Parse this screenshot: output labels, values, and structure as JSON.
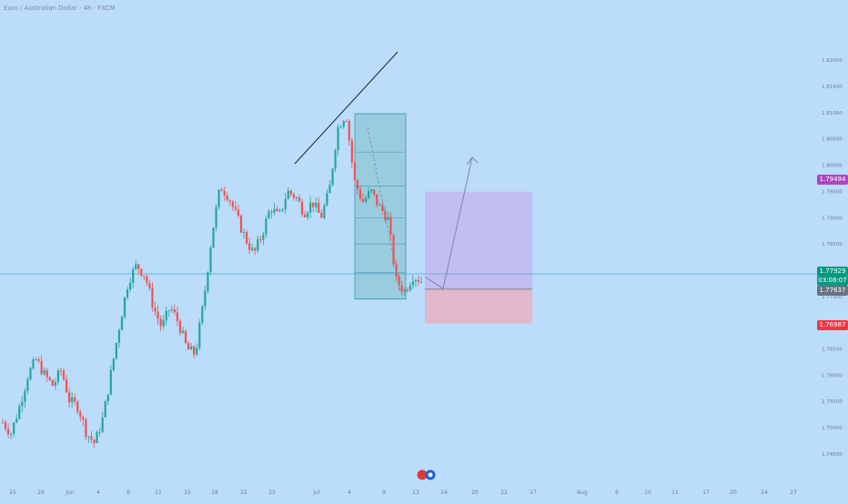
{
  "header": {
    "title": "Euro / Australian Dollar · 4h · FXCM"
  },
  "colors": {
    "background": "#bbdcfb",
    "up": "#26a69a",
    "down": "#ef5350",
    "fib_box": "#8fc7d6",
    "target_zone": "#c3b9f1",
    "stop_zone": "#e6b3c5",
    "current_price": "#089981",
    "target_price": "#ab47bc",
    "stop_price": "#f23645",
    "last_close": "#6b7280"
  },
  "price_labels": {
    "target": "1.79494",
    "current": "1.77929",
    "countdown": "03:08:07",
    "last_close": "1.77637",
    "stop": "1.76987"
  },
  "chart_data": {
    "type": "candlestick",
    "title": "Euro / Australian Dollar · 4h · FXCM",
    "y_axis": {
      "position": "right",
      "ylim": [
        1.7405,
        1.8197
      ],
      "ticks": [
        "1.74500",
        "1.75000",
        "1.75500",
        "1.76000",
        "1.76500",
        "1.77000",
        "1.77500",
        "1.78000",
        "1.78500",
        "1.79000",
        "1.79500",
        "1.80000",
        "1.80500",
        "1.81000",
        "1.81500",
        "1.82000"
      ]
    },
    "x_axis": {
      "ticks": [
        "25",
        "29",
        "Jun",
        "4",
        "6",
        "11",
        "15",
        "18",
        "22",
        "25",
        "Jul",
        "4",
        "9",
        "13",
        "14",
        "20",
        "22",
        "27",
        "Aug",
        "6",
        "10",
        "11",
        "17",
        "20",
        "24",
        "27"
      ]
    },
    "candles": {
      "description": "EUR/AUD 4h candles, approx. 25 May – 13 Jul, rising from ~1.745 to a high ~1.812 then falling to ~1.775",
      "anchors_close": [
        1.751,
        1.749,
        1.754,
        1.76,
        1.763,
        1.76,
        1.758,
        1.761,
        1.755,
        1.754,
        1.749,
        1.747,
        1.752,
        1.761,
        1.77,
        1.778,
        1.781,
        1.779,
        1.773,
        1.769,
        1.773,
        1.77,
        1.765,
        1.764,
        1.774,
        1.787,
        1.796,
        1.794,
        1.79,
        1.786,
        1.783,
        1.787,
        1.792,
        1.79,
        1.795,
        1.794,
        1.791,
        1.793,
        1.79,
        1.795,
        1.807,
        1.81,
        1.797,
        1.793,
        1.795,
        1.792,
        1.79,
        1.778,
        1.776,
        1.779,
        1.778
      ]
    },
    "drawings": {
      "trendline": {
        "from": {
          "x_candle": 46,
          "y": 1.797
        },
        "to": {
          "x_candle": 62,
          "y": 1.8195
        }
      },
      "fib_box": {
        "y_top": 1.8098,
        "y_bottom": 1.7745,
        "levels": [
          1.8098,
          1.8025,
          1.796,
          1.79,
          1.785,
          1.7795,
          1.7745
        ]
      },
      "projection_path": [
        1.7787,
        1.7765,
        1.8015
      ],
      "position": {
        "entry": 1.77637,
        "target": 1.79494,
        "stop": 1.76987
      }
    },
    "current_price": 1.77929
  }
}
